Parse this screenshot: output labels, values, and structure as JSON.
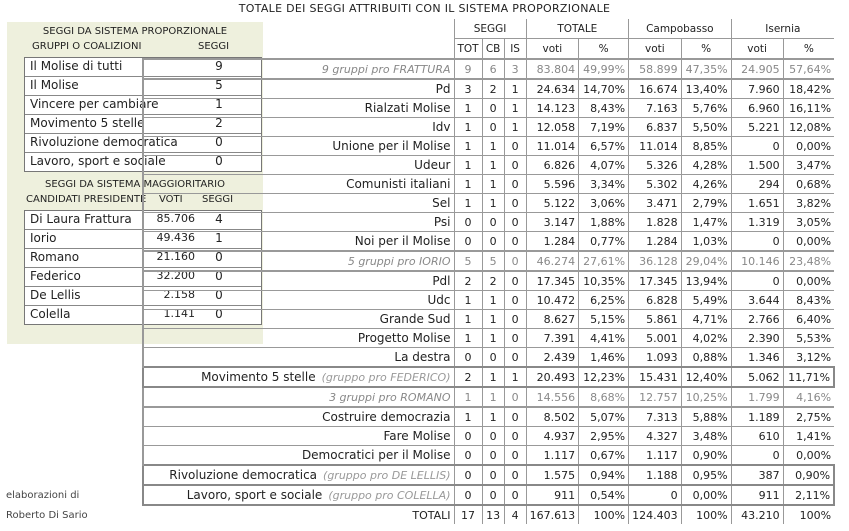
{
  "title": "TOTALE DEI SEGGI ATTRIBUITI CON IL SISTEMA PROPORZIONALE",
  "left": {
    "prop_title": "SEGGI DA SISTEMA PROPORZIONALE",
    "prop_col1": "GRUPPI O COALIZIONI",
    "prop_col2": "SEGGI",
    "prop_rows": [
      {
        "name": "Il Molise di tutti",
        "seats": "9"
      },
      {
        "name": "Il Molise",
        "seats": "5"
      },
      {
        "name": "Vincere per cambiare",
        "seats": "1"
      },
      {
        "name": "Movimento 5 stelle",
        "seats": "2"
      },
      {
        "name": "Rivoluzione democratica",
        "seats": "0"
      },
      {
        "name": "Lavoro, sport e sociale",
        "seats": "0"
      }
    ],
    "magg_title": "SEGGI DA SISTEMA MAGGIORITARIO",
    "magg_col1": "CANDIDATI PRESIDENTE",
    "magg_col2": "VOTI",
    "magg_col3": "SEGGI",
    "magg_rows": [
      {
        "name": "Di Laura Frattura",
        "votes": "85.706",
        "seats": "4"
      },
      {
        "name": "Iorio",
        "votes": "49.436",
        "seats": "1"
      },
      {
        "name": "Romano",
        "votes": "21.160",
        "seats": "0"
      },
      {
        "name": "Federico",
        "votes": "32.200",
        "seats": "0"
      },
      {
        "name": "De Lellis",
        "votes": "2.158",
        "seats": "0"
      },
      {
        "name": "Colella",
        "votes": "1.141",
        "seats": "0"
      }
    ]
  },
  "credit": {
    "line1": "elaborazioni di",
    "line2": "Roberto Di Sario"
  },
  "table": {
    "h_seggi": "SEGGI",
    "h_totale": "TOTALE",
    "h_cb": "Campobasso",
    "h_is": "Isernia",
    "h_tot": "TOT",
    "h_cbs": "CB",
    "h_iss": "IS",
    "h_voti": "voti",
    "h_pct": "%",
    "rows": [
      {
        "kind": "group",
        "name": "9 gruppi pro FRATTURA",
        "v": [
          "9",
          "6",
          "3",
          "83.804",
          "49,99%",
          "58.899",
          "47,35%",
          "24.905",
          "57,64%"
        ]
      },
      {
        "kind": "party",
        "name": "Pd",
        "v": [
          "3",
          "2",
          "1",
          "24.634",
          "14,70%",
          "16.674",
          "13,40%",
          "7.960",
          "18,42%"
        ]
      },
      {
        "kind": "party",
        "name": "Rialzati Molise",
        "v": [
          "1",
          "0",
          "1",
          "14.123",
          "8,43%",
          "7.163",
          "5,76%",
          "6.960",
          "16,11%"
        ]
      },
      {
        "kind": "party",
        "name": "Idv",
        "v": [
          "1",
          "0",
          "1",
          "12.058",
          "7,19%",
          "6.837",
          "5,50%",
          "5.221",
          "12,08%"
        ]
      },
      {
        "kind": "party",
        "name": "Unione per il Molise",
        "v": [
          "1",
          "1",
          "0",
          "11.014",
          "6,57%",
          "11.014",
          "8,85%",
          "0",
          "0,00%"
        ]
      },
      {
        "kind": "party",
        "name": "Udeur",
        "v": [
          "1",
          "1",
          "0",
          "6.826",
          "4,07%",
          "5.326",
          "4,28%",
          "1.500",
          "3,47%"
        ]
      },
      {
        "kind": "party",
        "name": "Comunisti italiani",
        "v": [
          "1",
          "1",
          "0",
          "5.596",
          "3,34%",
          "5.302",
          "4,26%",
          "294",
          "0,68%"
        ]
      },
      {
        "kind": "party",
        "name": "Sel",
        "v": [
          "1",
          "1",
          "0",
          "5.122",
          "3,06%",
          "3.471",
          "2,79%",
          "1.651",
          "3,82%"
        ]
      },
      {
        "kind": "party",
        "name": "Psi",
        "v": [
          "0",
          "0",
          "0",
          "3.147",
          "1,88%",
          "1.828",
          "1,47%",
          "1.319",
          "3,05%"
        ]
      },
      {
        "kind": "party",
        "name": "Noi per il Molise",
        "v": [
          "0",
          "0",
          "0",
          "1.284",
          "0,77%",
          "1.284",
          "1,03%",
          "0",
          "0,00%"
        ]
      },
      {
        "kind": "group",
        "name": "5 gruppi pro IORIO",
        "v": [
          "5",
          "5",
          "0",
          "46.274",
          "27,61%",
          "36.128",
          "29,04%",
          "10.146",
          "23,48%"
        ]
      },
      {
        "kind": "party",
        "name": "Pdl",
        "v": [
          "2",
          "2",
          "0",
          "17.345",
          "10,35%",
          "17.345",
          "13,94%",
          "0",
          "0,00%"
        ]
      },
      {
        "kind": "party",
        "name": "Udc",
        "v": [
          "1",
          "1",
          "0",
          "10.472",
          "6,25%",
          "6.828",
          "5,49%",
          "3.644",
          "8,43%"
        ]
      },
      {
        "kind": "party",
        "name": "Grande Sud",
        "v": [
          "1",
          "1",
          "0",
          "8.627",
          "5,15%",
          "5.861",
          "4,71%",
          "2.766",
          "6,40%"
        ]
      },
      {
        "kind": "party",
        "name": "Progetto Molise",
        "v": [
          "1",
          "1",
          "0",
          "7.391",
          "4,41%",
          "5.001",
          "4,02%",
          "2.390",
          "5,53%"
        ]
      },
      {
        "kind": "party",
        "name": "La destra",
        "v": [
          "0",
          "0",
          "0",
          "2.439",
          "1,46%",
          "1.093",
          "0,88%",
          "1.346",
          "3,12%"
        ]
      },
      {
        "kind": "single",
        "name": "Movimento 5 stelle",
        "note": "(gruppo pro FEDERICO)",
        "v": [
          "2",
          "1",
          "1",
          "20.493",
          "12,23%",
          "15.431",
          "12,40%",
          "5.062",
          "11,71%"
        ]
      },
      {
        "kind": "group",
        "name": "3 gruppi pro ROMANO",
        "v": [
          "1",
          "1",
          "0",
          "14.556",
          "8,68%",
          "12.757",
          "10,25%",
          "1.799",
          "4,16%"
        ]
      },
      {
        "kind": "party",
        "name": "Costruire democrazia",
        "v": [
          "1",
          "1",
          "0",
          "8.502",
          "5,07%",
          "7.313",
          "5,88%",
          "1.189",
          "2,75%"
        ]
      },
      {
        "kind": "party",
        "name": "Fare Molise",
        "v": [
          "0",
          "0",
          "0",
          "4.937",
          "2,95%",
          "4.327",
          "3,48%",
          "610",
          "1,41%"
        ]
      },
      {
        "kind": "party",
        "name": "Democratici per il Molise",
        "v": [
          "0",
          "0",
          "0",
          "1.117",
          "0,67%",
          "1.117",
          "0,90%",
          "0",
          "0,00%"
        ]
      },
      {
        "kind": "single",
        "name": "Rivoluzione democratica",
        "note": "(gruppo pro DE LELLIS)",
        "v": [
          "0",
          "0",
          "0",
          "1.575",
          "0,94%",
          "1.188",
          "0,95%",
          "387",
          "0,90%"
        ]
      },
      {
        "kind": "single",
        "name": "Lavoro, sport e sociale",
        "note": "(gruppo pro COLELLA)",
        "v": [
          "0",
          "0",
          "0",
          "911",
          "0,54%",
          "0",
          "0,00%",
          "911",
          "2,11%"
        ]
      }
    ],
    "totals": {
      "label": "TOTALI",
      "v": [
        "17",
        "13",
        "4",
        "167.613",
        "100%",
        "124.403",
        "100%",
        "43.210",
        "100%"
      ]
    }
  }
}
